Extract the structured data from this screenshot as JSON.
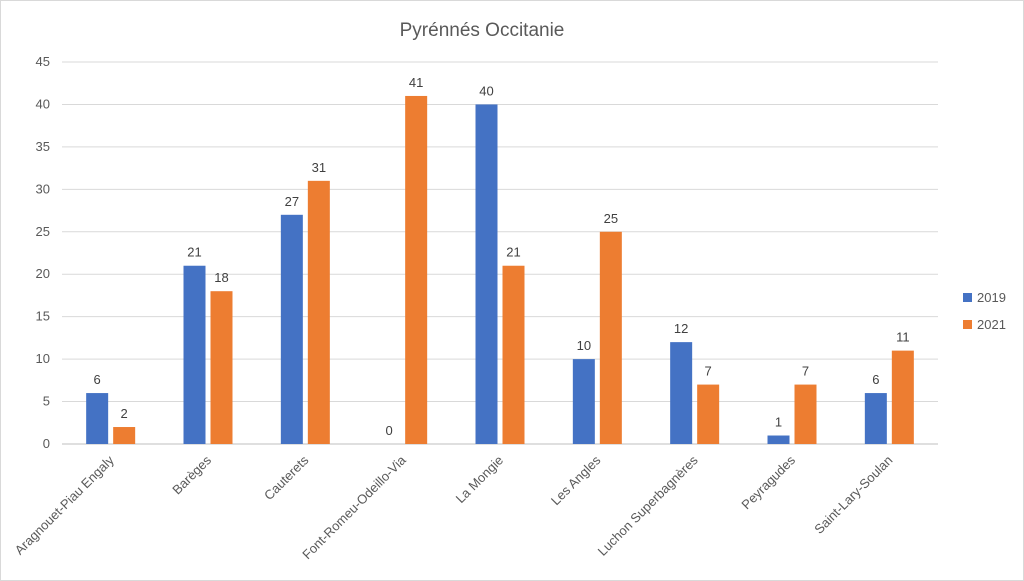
{
  "chart_data": {
    "type": "bar",
    "title": "Pyrénnés Occitanie",
    "xlabel": "",
    "ylabel": "",
    "categories": [
      "Aragnouet-Piau Engaly",
      "Barèges",
      "Cauterets",
      "Font-Romeu-Odeillo-Via",
      "La Mongie",
      "Les Angles",
      "Luchon Superbagnères",
      "Peyragudes",
      "Saint-Lary-Soulan"
    ],
    "series": [
      {
        "name": "2019",
        "color": "#4472c4",
        "values": [
          6,
          21,
          27,
          0,
          40,
          10,
          12,
          1,
          6
        ]
      },
      {
        "name": "2021",
        "color": "#ed7d31",
        "values": [
          2,
          18,
          31,
          41,
          21,
          25,
          7,
          7,
          11
        ]
      }
    ],
    "ylim": [
      0,
      45
    ],
    "yticks": [
      0,
      5,
      10,
      15,
      20,
      25,
      30,
      35,
      40,
      45
    ],
    "grid": true,
    "legend": "right",
    "data_labels": true
  }
}
